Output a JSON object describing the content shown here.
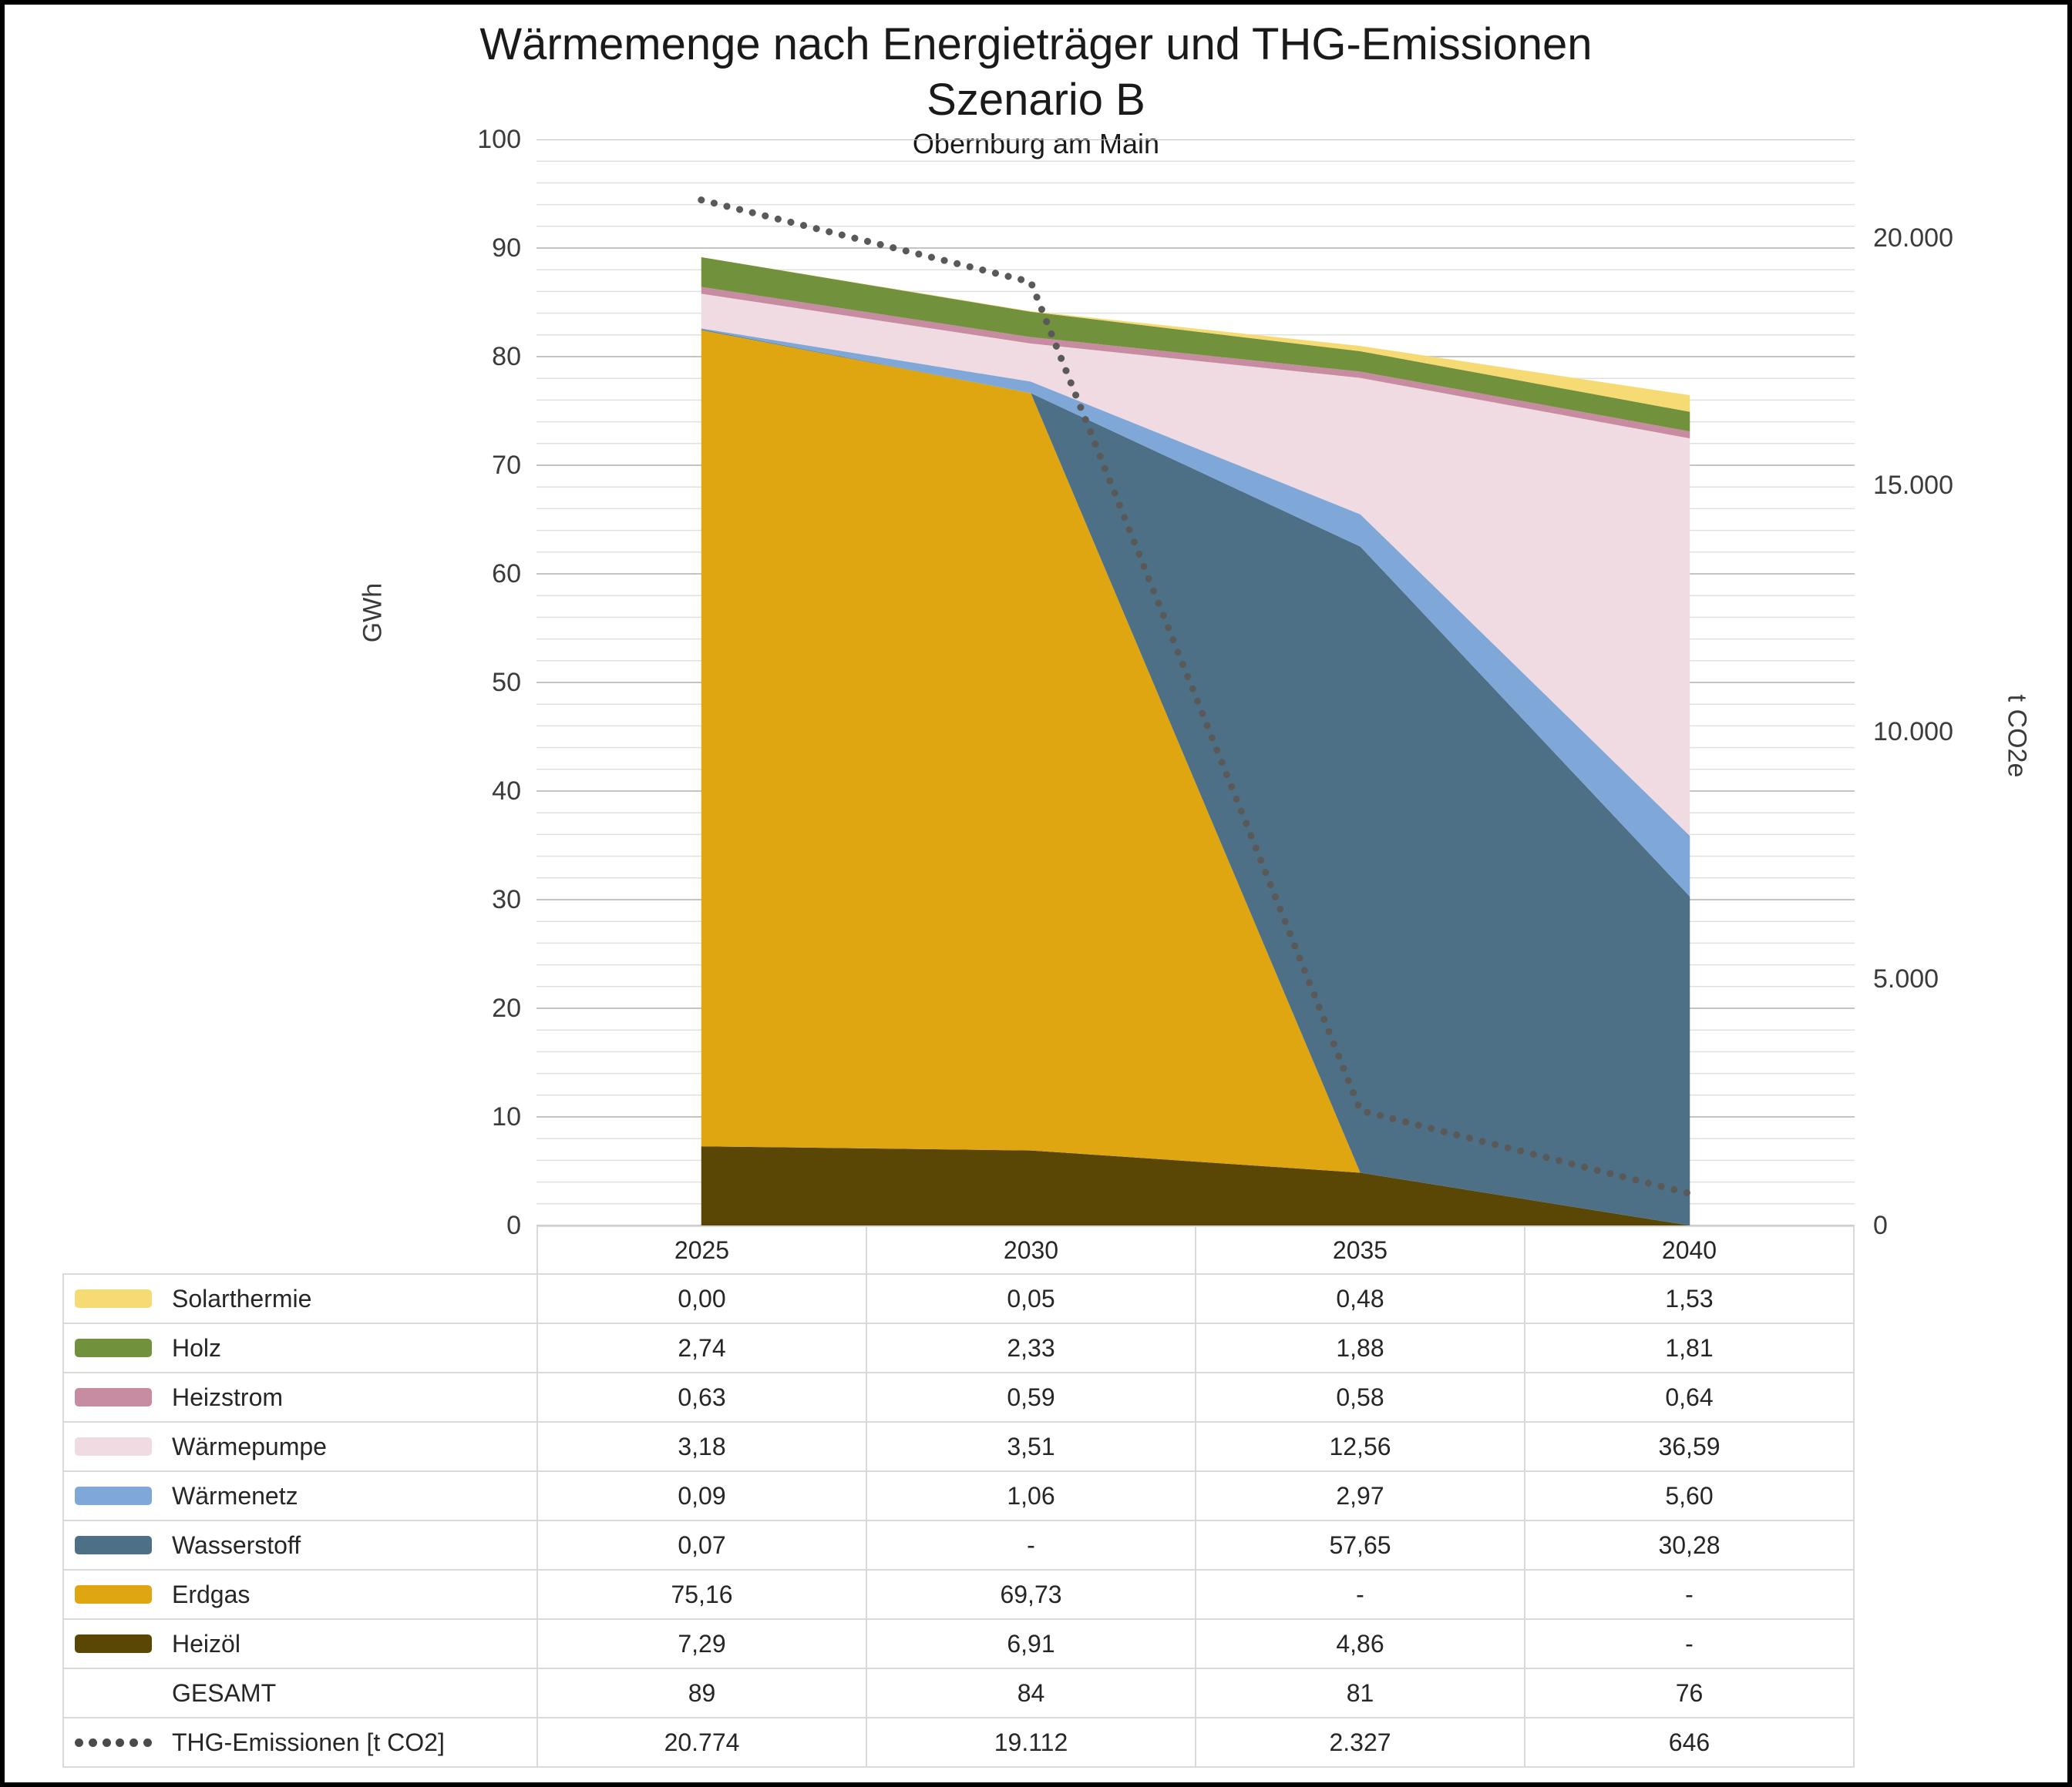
{
  "title": {
    "line1": "Wärmemenge nach Energieträger und THG-Emissionen",
    "line2": "Szenario B",
    "subtitle": "Obernburg am Main"
  },
  "chart_data": {
    "type": "area",
    "stacked": true,
    "grid": "horizontal",
    "categories": [
      "2025",
      "2030",
      "2035",
      "2040"
    ],
    "series": [
      {
        "id": "heizoel",
        "name": "Heizöl",
        "color": "#5A4705",
        "values": [
          7.29,
          6.91,
          4.86,
          0
        ]
      },
      {
        "id": "erdgas",
        "name": "Erdgas",
        "color": "#DFA611",
        "values": [
          75.16,
          69.73,
          0,
          0
        ]
      },
      {
        "id": "wasserstoff",
        "name": "Wasserstoff",
        "color": "#4E7086",
        "values": [
          0.07,
          0,
          57.65,
          30.28
        ]
      },
      {
        "id": "waermenetz",
        "name": "Wärmenetz",
        "color": "#7FA8D9",
        "values": [
          0.09,
          1.06,
          2.97,
          5.6
        ]
      },
      {
        "id": "waermepumpe",
        "name": "Wärmepumpe",
        "color": "#F1DBE3",
        "values": [
          3.18,
          3.51,
          12.56,
          36.59
        ]
      },
      {
        "id": "heizstrom",
        "name": "Heizstrom",
        "color": "#C78BA2",
        "values": [
          0.63,
          0.59,
          0.58,
          0.64
        ]
      },
      {
        "id": "holz",
        "name": "Holz",
        "color": "#71913C",
        "values": [
          2.74,
          2.33,
          1.88,
          1.81
        ]
      },
      {
        "id": "solarthermie",
        "name": "Solarthermie",
        "color": "#F6DB74",
        "values": [
          0,
          0.05,
          0.48,
          1.53
        ]
      }
    ],
    "line_series": {
      "id": "thg",
      "name": "THG-Emissionen [t CO2]",
      "axis": "right",
      "color": "#595959",
      "style": "dotted",
      "values": [
        20774,
        19112,
        2327,
        646
      ]
    },
    "left_axis": {
      "label": "GWh",
      "min": 0,
      "max": 100,
      "major": 10,
      "minor": 2,
      "tick_values": [
        0,
        10,
        20,
        30,
        40,
        50,
        60,
        70,
        80,
        90,
        100
      ]
    },
    "right_axis": {
      "label": "t CO2e",
      "min": 0,
      "max": 22000,
      "ticks": [
        {
          "value": 0,
          "label": "0"
        },
        {
          "value": 5000,
          "label": "5.000"
        },
        {
          "value": 10000,
          "label": "10.000"
        },
        {
          "value": 15000,
          "label": "15.000"
        },
        {
          "value": 20000,
          "label": "20.000"
        }
      ]
    },
    "legend_position": "table-bottom"
  },
  "table": {
    "rows": [
      {
        "id": "solarthermie",
        "label": "Solarthermie",
        "type": "area",
        "swatch": "#F6DB74",
        "values": [
          "0,00",
          "0,05",
          "0,48",
          "1,53"
        ]
      },
      {
        "id": "holz",
        "label": "Holz",
        "type": "area",
        "swatch": "#71913C",
        "values": [
          "2,74",
          "2,33",
          "1,88",
          "1,81"
        ]
      },
      {
        "id": "heizstrom",
        "label": "Heizstrom",
        "type": "area",
        "swatch": "#C78BA2",
        "values": [
          "0,63",
          "0,59",
          "0,58",
          "0,64"
        ]
      },
      {
        "id": "waermepumpe",
        "label": "Wärmepumpe",
        "type": "area",
        "swatch": "#F1DBE3",
        "values": [
          "3,18",
          "3,51",
          "12,56",
          "36,59"
        ]
      },
      {
        "id": "waermenetz",
        "label": "Wärmenetz",
        "type": "area",
        "swatch": "#7FA8D9",
        "values": [
          "0,09",
          "1,06",
          "2,97",
          "5,60"
        ]
      },
      {
        "id": "wasserstoff",
        "label": "Wasserstoff",
        "type": "area",
        "swatch": "#4E7086",
        "values": [
          "0,07",
          "-",
          "57,65",
          "30,28"
        ]
      },
      {
        "id": "erdgas",
        "label": "Erdgas",
        "type": "area",
        "swatch": "#DFA611",
        "values": [
          "75,16",
          "69,73",
          "-",
          "-"
        ]
      },
      {
        "id": "heizoel",
        "label": "Heizöl",
        "type": "area",
        "swatch": "#5A4705",
        "values": [
          "7,29",
          "6,91",
          "4,86",
          "-"
        ]
      },
      {
        "id": "gesamt",
        "label": "GESAMT",
        "type": "total",
        "swatch": null,
        "values": [
          "89",
          "84",
          "81",
          "76"
        ]
      },
      {
        "id": "thg",
        "label": "THG-Emissionen [t CO2]",
        "type": "line",
        "swatch": "dotted",
        "values": [
          "20.774",
          "19.112",
          "2.327",
          "646"
        ]
      }
    ]
  }
}
